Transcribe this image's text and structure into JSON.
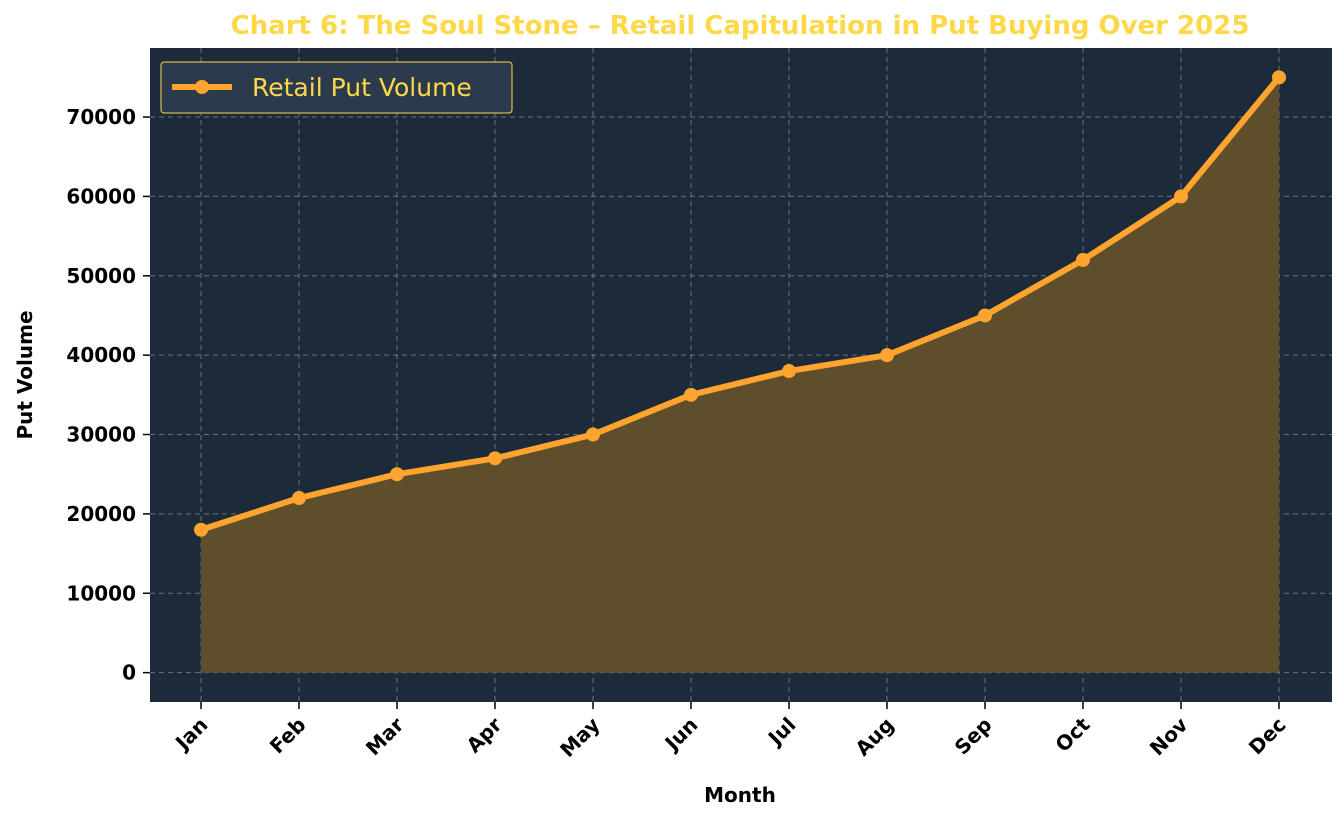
{
  "chart_data": {
    "type": "area",
    "title": "Chart 6: The Soul Stone – Retail Capitulation in Put Buying Over 2025",
    "xlabel": "Month",
    "ylabel": "Put Volume",
    "categories": [
      "Jan",
      "Feb",
      "Mar",
      "Apr",
      "May",
      "Jun",
      "Jul",
      "Aug",
      "Sep",
      "Oct",
      "Nov",
      "Dec"
    ],
    "series": [
      {
        "name": "Retail Put Volume",
        "values": [
          18000,
          22000,
          25000,
          27000,
          30000,
          35000,
          38000,
          40000,
          45000,
          52000,
          60000,
          75000
        ]
      }
    ],
    "ylim": [
      -3700,
      78700
    ],
    "yticks": [
      "0",
      "10000",
      "20000",
      "30000",
      "40000",
      "50000",
      "60000",
      "70000"
    ],
    "grid": true,
    "legend_position": "top-left",
    "colors": {
      "plot_background": "#1c2a3a",
      "line": "#ffa42e",
      "fill": "#5f4e2b",
      "grid": "#7f8a96",
      "title": "#ffd84a",
      "legend_text": "#ffd84a",
      "legend_border": "#ffd84a",
      "legend_background": "#2b3a4d"
    }
  }
}
